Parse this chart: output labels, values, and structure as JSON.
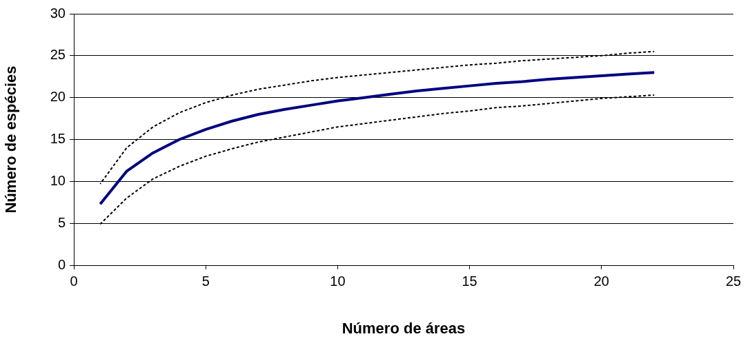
{
  "chart_data": {
    "type": "line",
    "xlabel": "Número de áreas",
    "ylabel": "Número de espécies",
    "x": [
      1,
      2,
      3,
      4,
      5,
      6,
      7,
      8,
      9,
      10,
      11,
      12,
      13,
      14,
      15,
      16,
      17,
      18,
      19,
      20,
      21,
      22
    ],
    "series": [
      {
        "color": "#000080",
        "values": [
          7.3,
          11.2,
          13.4,
          15.0,
          16.2,
          17.2,
          18.0,
          18.6,
          19.1,
          19.6,
          20.0,
          20.4,
          20.8,
          21.1,
          21.4,
          21.7,
          21.9,
          22.2,
          22.4,
          22.6,
          22.8,
          23.0
        ]
      },
      {
        "color": "#000000",
        "line_style": "dotted",
        "values": [
          9.7,
          14.0,
          16.5,
          18.2,
          19.4,
          20.3,
          21.0,
          21.5,
          22.0,
          22.4,
          22.7,
          23.0,
          23.3,
          23.6,
          23.9,
          24.1,
          24.4,
          24.6,
          24.8,
          25.0,
          25.3,
          25.5
        ]
      },
      {
        "color": "#000000",
        "line_style": "dotted",
        "values": [
          4.9,
          8.0,
          10.3,
          11.8,
          13.0,
          13.9,
          14.7,
          15.3,
          15.9,
          16.5,
          16.9,
          17.3,
          17.7,
          18.1,
          18.4,
          18.8,
          19.0,
          19.3,
          19.6,
          19.9,
          20.1,
          20.3
        ]
      }
    ],
    "xlim": [
      0,
      25
    ],
    "xticks": [
      0,
      5,
      10,
      15,
      20,
      25
    ],
    "ylim": [
      0,
      30
    ],
    "yticks": [
      0,
      5,
      10,
      15,
      20,
      25,
      30
    ],
    "grid": "y",
    "legend": false,
    "marker": "none"
  }
}
